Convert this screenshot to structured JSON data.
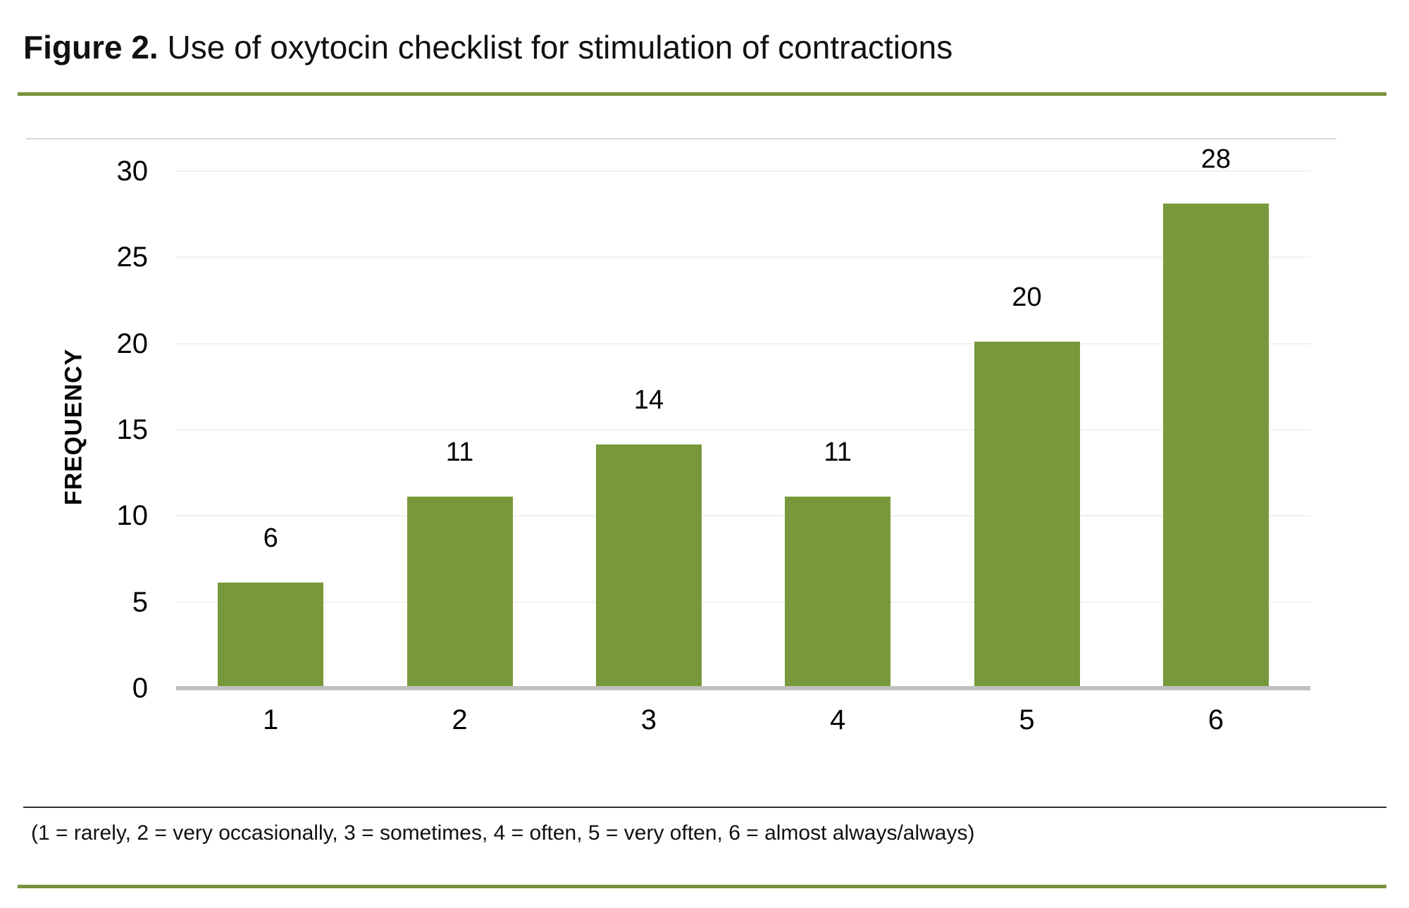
{
  "figure": {
    "title_prefix": "Figure 2.",
    "title_rest": " Use of oxytocin checklist for stimulation of contractions",
    "footnote": "(1 = rarely, 2 = very occasionally, 3 = sometimes, 4 = often, 5 = very often, 6 = almost always/always)"
  },
  "colors": {
    "bar": "#78993B",
    "rule_green": "#77933C",
    "gridline": "#F1F1F1",
    "panel_border": "#D9D9D9",
    "baseline": "#BFBFBF",
    "divider_dark": "#303030",
    "text": "#000000"
  },
  "chart_data": {
    "type": "bar",
    "title": "Use of oxytocin checklist for stimulation of contractions",
    "categories": [
      "1",
      "2",
      "3",
      "4",
      "5",
      "6"
    ],
    "values": [
      6,
      11,
      14,
      11,
      20,
      28
    ],
    "xlabel": "",
    "ylabel": "FREQUENCY",
    "ylim": [
      0,
      30
    ],
    "yticks": [
      0,
      5,
      10,
      15,
      20,
      25,
      30
    ],
    "grid": true,
    "data_labels": true,
    "legend_position": "none"
  }
}
